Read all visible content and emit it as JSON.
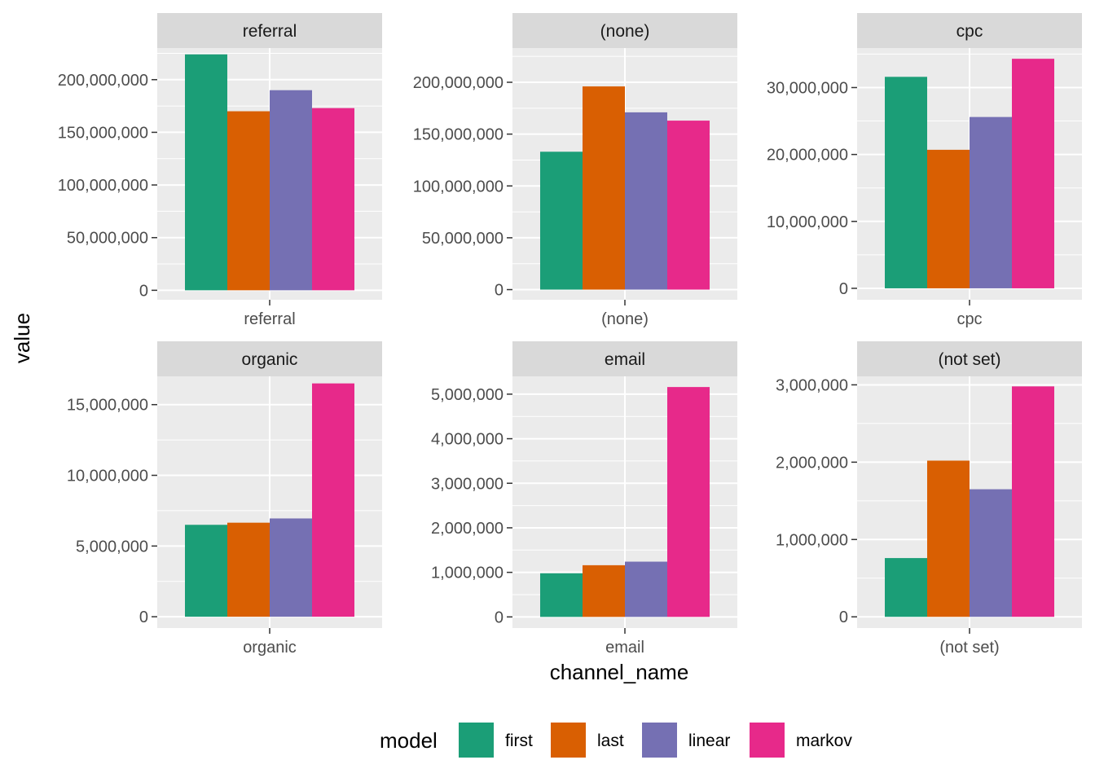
{
  "chart_data": {
    "type": "bar",
    "xlabel": "channel_name",
    "ylabel": "value",
    "legend": {
      "title": "model",
      "position": "bottom",
      "entries": [
        "first",
        "last",
        "linear",
        "markov"
      ]
    },
    "colors": {
      "first": "#1b9e77",
      "last": "#d95f02",
      "linear": "#7570b3",
      "markov": "#e7298a",
      "panel_background": "#ebebeb",
      "strip_background": "#d9d9d9",
      "grid": "#ffffff"
    },
    "grid": true,
    "facets": [
      {
        "strip": "referral",
        "category": "referral",
        "ylim": [
          -9000000,
          230000000
        ],
        "yticks": [
          0,
          50000000,
          100000000,
          150000000,
          200000000
        ],
        "ytick_labels": [
          "0",
          "50,000,000",
          "100,000,000",
          "150,000,000",
          "200,000,000"
        ],
        "series": [
          {
            "name": "first",
            "value": 224000000
          },
          {
            "name": "last",
            "value": 170000000
          },
          {
            "name": "linear",
            "value": 190000000
          },
          {
            "name": "markov",
            "value": 173000000
          }
        ]
      },
      {
        "strip": "(none)",
        "category": "(none)",
        "ylim": [
          -9800000,
          233000000
        ],
        "yticks": [
          0,
          50000000,
          100000000,
          150000000,
          200000000
        ],
        "ytick_labels": [
          "0",
          "50,000,000",
          "100,000,000",
          "150,000,000",
          "200,000,000"
        ],
        "series": [
          {
            "name": "first",
            "value": 133000000
          },
          {
            "name": "last",
            "value": 196000000
          },
          {
            "name": "linear",
            "value": 171000000
          },
          {
            "name": "markov",
            "value": 163000000
          }
        ]
      },
      {
        "strip": "cpc",
        "category": "cpc",
        "ylim": [
          -1710000,
          35900000
        ],
        "yticks": [
          0,
          10000000,
          20000000,
          30000000
        ],
        "ytick_labels": [
          "0",
          "10,000,000",
          "20,000,000",
          "30,000,000"
        ],
        "series": [
          {
            "name": "first",
            "value": 31600000
          },
          {
            "name": "last",
            "value": 20700000
          },
          {
            "name": "linear",
            "value": 25600000
          },
          {
            "name": "markov",
            "value": 34300000
          }
        ]
      },
      {
        "strip": "organic",
        "category": "organic",
        "ylim": [
          -800000,
          17000000
        ],
        "yticks": [
          0,
          5000000,
          10000000,
          15000000
        ],
        "ytick_labels": [
          "0",
          "5,000,000",
          "10,000,000",
          "15,000,000"
        ],
        "series": [
          {
            "name": "first",
            "value": 6500000
          },
          {
            "name": "last",
            "value": 6650000
          },
          {
            "name": "linear",
            "value": 6950000
          },
          {
            "name": "markov",
            "value": 16500000
          }
        ]
      },
      {
        "strip": "email",
        "category": "email",
        "ylim": [
          -250000,
          5400000
        ],
        "yticks": [
          0,
          1000000,
          2000000,
          3000000,
          4000000,
          5000000
        ],
        "ytick_labels": [
          "0",
          "1,000,000",
          "2,000,000",
          "3,000,000",
          "4,000,000",
          "5,000,000"
        ],
        "series": [
          {
            "name": "first",
            "value": 980000
          },
          {
            "name": "last",
            "value": 1160000
          },
          {
            "name": "linear",
            "value": 1240000
          },
          {
            "name": "markov",
            "value": 5160000
          }
        ]
      },
      {
        "strip": "(not set)",
        "category": "(not set)",
        "ylim": [
          -145000,
          3110000
        ],
        "yticks": [
          0,
          1000000,
          2000000,
          3000000
        ],
        "ytick_labels": [
          "0",
          "1,000,000",
          "2,000,000",
          "3,000,000"
        ],
        "series": [
          {
            "name": "first",
            "value": 760000
          },
          {
            "name": "last",
            "value": 2020000
          },
          {
            "name": "linear",
            "value": 1650000
          },
          {
            "name": "markov",
            "value": 2980000
          }
        ]
      }
    ]
  }
}
